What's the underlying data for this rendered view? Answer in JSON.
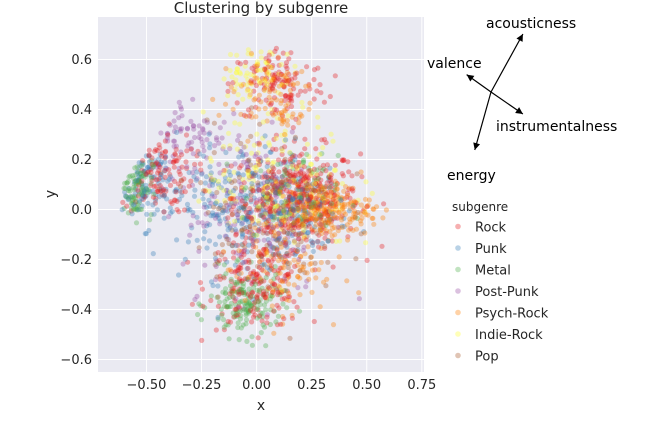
{
  "chart_data": {
    "type": "scatter",
    "title": "Clustering by subgenre",
    "xlabel": "x",
    "ylabel": "y",
    "xlim": [
      -0.72,
      0.76
    ],
    "ylim": [
      -0.65,
      0.77
    ],
    "xticks": [
      "−0.50",
      "−0.25",
      "0.00",
      "0.25",
      "0.50",
      "0.75"
    ],
    "xtick_values": [
      -0.5,
      -0.25,
      0,
      0.25,
      0.5,
      0.75
    ],
    "yticks": [
      "−0.6",
      "−0.4",
      "−0.2",
      "0.0",
      "0.2",
      "0.4",
      "0.6"
    ],
    "ytick_values": [
      -0.6,
      -0.4,
      -0.2,
      0,
      0.2,
      0.4,
      0.6
    ],
    "grid": true,
    "legend": {
      "title": "subgenre",
      "placement": "right",
      "entries": [
        "Rock",
        "Punk",
        "Metal",
        "Post-Punk",
        "Psych-Rock",
        "Indie-Rock",
        "Pop"
      ]
    },
    "series": [
      {
        "name": "Rock",
        "color": "#e41a1c",
        "clusters": [
          [
            0.18,
            0.05,
            0.26,
            0.18,
            380
          ],
          [
            0.0,
            -0.3,
            0.2,
            0.16,
            180
          ],
          [
            0.1,
            0.5,
            0.2,
            0.14,
            120
          ],
          [
            -0.45,
            0.15,
            0.15,
            0.15,
            110
          ]
        ]
      },
      {
        "name": "Punk",
        "color": "#377eb8",
        "clusters": [
          [
            -0.1,
            0.0,
            0.3,
            0.25,
            220
          ],
          [
            0.2,
            0.0,
            0.2,
            0.15,
            120
          ],
          [
            -0.5,
            0.1,
            0.1,
            0.15,
            90
          ]
        ]
      },
      {
        "name": "Metal",
        "color": "#4daf4a",
        "clusters": [
          [
            -0.05,
            -0.38,
            0.15,
            0.12,
            160
          ],
          [
            -0.55,
            0.1,
            0.07,
            0.12,
            90
          ],
          [
            0.15,
            0.05,
            0.2,
            0.15,
            100
          ]
        ]
      },
      {
        "name": "Post-Punk",
        "color": "#984ea3",
        "clusters": [
          [
            0.0,
            0.0,
            0.3,
            0.3,
            180
          ],
          [
            -0.3,
            0.3,
            0.15,
            0.15,
            70
          ]
        ]
      },
      {
        "name": "Psych-Rock",
        "color": "#ff7f00",
        "clusters": [
          [
            0.3,
            0.0,
            0.2,
            0.1,
            240
          ],
          [
            0.1,
            -0.25,
            0.2,
            0.15,
            100
          ],
          [
            0.05,
            0.45,
            0.2,
            0.15,
            90
          ]
        ]
      },
      {
        "name": "Indie-Rock",
        "color": "#ffff33",
        "clusters": [
          [
            0.1,
            0.1,
            0.3,
            0.25,
            180
          ],
          [
            0.0,
            0.55,
            0.15,
            0.1,
            70
          ]
        ]
      },
      {
        "name": "Pop",
        "color": "#a65628",
        "clusters": [
          [
            0.05,
            0.0,
            0.3,
            0.3,
            150
          ]
        ]
      }
    ],
    "loadings": [
      {
        "name": "acousticness",
        "dx": 0.55,
        "dy": 1.0
      },
      {
        "name": "valence",
        "dx": -0.42,
        "dy": 0.3
      },
      {
        "name": "instrumentalness",
        "dx": 0.55,
        "dy": -0.38
      },
      {
        "name": "energy",
        "dx": -0.28,
        "dy": -1.0
      }
    ]
  }
}
